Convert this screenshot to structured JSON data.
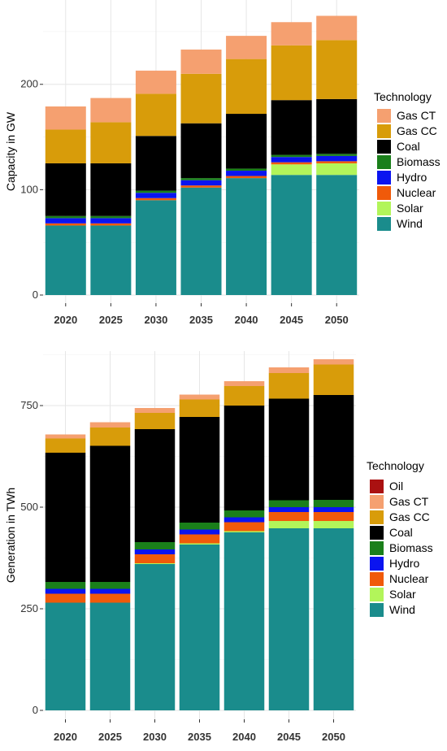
{
  "colors": {
    "Oil": "#aa1111",
    "Gas CT": "#f5a070",
    "Gas CC": "#d89c0a",
    "Coal": "#000000",
    "Biomass": "#1a7f1a",
    "Hydro": "#0a14f0",
    "Nuclear": "#f05a0a",
    "Solar": "#b2f55a",
    "Wind": "#1a8c8c"
  },
  "chart_data": [
    {
      "type": "bar",
      "stacked": true,
      "categories": [
        "2020",
        "2025",
        "2030",
        "2035",
        "2040",
        "2045",
        "2050"
      ],
      "ylabel": "Capacity in GW",
      "xlabel": "",
      "ylim": [
        0,
        270
      ],
      "yticks": [
        0,
        100,
        200
      ],
      "legend_title": "Technology",
      "legend_position": "right",
      "grid": true,
      "series": [
        {
          "name": "Wind",
          "values": [
            66,
            66,
            90,
            102,
            111,
            114,
            114
          ]
        },
        {
          "name": "Solar",
          "values": [
            0,
            0,
            0,
            0,
            0,
            10,
            11
          ]
        },
        {
          "name": "Nuclear",
          "values": [
            2,
            2,
            2,
            2,
            2,
            2,
            2
          ]
        },
        {
          "name": "Hydro",
          "values": [
            5,
            5,
            5,
            5,
            5,
            5,
            5
          ]
        },
        {
          "name": "Biomass",
          "values": [
            2,
            2,
            2,
            2,
            2,
            2,
            2
          ]
        },
        {
          "name": "Coal",
          "values": [
            50,
            50,
            52,
            52,
            52,
            52,
            52
          ]
        },
        {
          "name": "Gas CC",
          "values": [
            32,
            39,
            40,
            47,
            52,
            52,
            56
          ]
        },
        {
          "name": "Gas CT",
          "values": [
            22,
            23,
            22,
            23,
            22,
            22,
            23
          ]
        }
      ]
    },
    {
      "type": "bar",
      "stacked": true,
      "categories": [
        "2020",
        "2025",
        "2030",
        "2035",
        "2040",
        "2045",
        "2050"
      ],
      "ylabel": "Generation in TWh",
      "xlabel": "",
      "ylim": [
        0,
        880
      ],
      "yticks": [
        0,
        250,
        500,
        750
      ],
      "legend_title": "Technology",
      "legend_position": "right",
      "grid": true,
      "series": [
        {
          "name": "Wind",
          "values": [
            265,
            265,
            360,
            408,
            438,
            448,
            448
          ]
        },
        {
          "name": "Solar",
          "values": [
            0,
            0,
            2,
            3,
            3,
            18,
            18
          ]
        },
        {
          "name": "Nuclear",
          "values": [
            22,
            22,
            22,
            22,
            22,
            22,
            22
          ]
        },
        {
          "name": "Hydro",
          "values": [
            12,
            12,
            12,
            12,
            12,
            12,
            12
          ]
        },
        {
          "name": "Biomass",
          "values": [
            17,
            17,
            18,
            17,
            17,
            17,
            18
          ]
        },
        {
          "name": "Coal",
          "values": [
            318,
            335,
            278,
            260,
            258,
            250,
            258
          ]
        },
        {
          "name": "Gas CC",
          "values": [
            35,
            45,
            40,
            43,
            48,
            63,
            75
          ]
        },
        {
          "name": "Gas CT",
          "values": [
            10,
            13,
            12,
            12,
            12,
            14,
            13
          ]
        },
        {
          "name": "Oil",
          "values": [
            0,
            0,
            0,
            0,
            0,
            0,
            0
          ]
        }
      ]
    }
  ]
}
